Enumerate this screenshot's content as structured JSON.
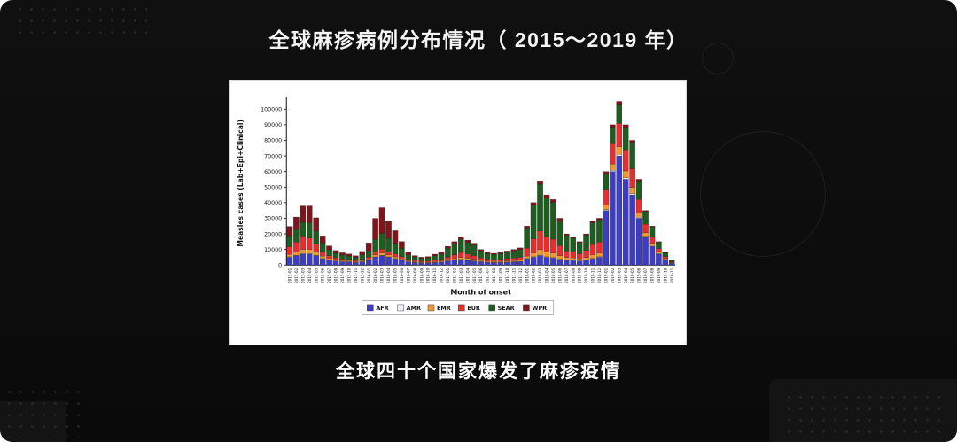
{
  "slide": {
    "title": "全球麻疹病例分布情况（ 2015～2019 年）",
    "caption": "全球四十个国家爆发了麻疹疫情"
  },
  "chart_data": {
    "type": "bar",
    "stacked": true,
    "title": "",
    "xlabel": "Month of onset",
    "ylabel": "Measles cases (Lab+Epi+Clinical)",
    "ylim": [
      0,
      105000
    ],
    "ytick_step": 10000,
    "grid": false,
    "legend_position": "bottom",
    "categories": [
      "2015-01",
      "2015-02",
      "2015-03",
      "2015-04",
      "2015-05",
      "2015-06",
      "2015-07",
      "2015-08",
      "2015-09",
      "2015-10",
      "2015-11",
      "2015-12",
      "2016-01",
      "2016-02",
      "2016-03",
      "2016-04",
      "2016-05",
      "2016-06",
      "2016-07",
      "2016-08",
      "2016-09",
      "2016-10",
      "2016-11",
      "2016-12",
      "2017-01",
      "2017-02",
      "2017-03",
      "2017-04",
      "2017-05",
      "2017-06",
      "2017-07",
      "2017-08",
      "2017-09",
      "2017-10",
      "2017-11",
      "2017-12",
      "2018-01",
      "2018-02",
      "2018-03",
      "2018-04",
      "2018-05",
      "2018-06",
      "2018-07",
      "2018-08",
      "2018-09",
      "2018-10",
      "2018-11",
      "2018-12",
      "2019-01",
      "2019-02",
      "2019-03",
      "2019-04",
      "2019-05",
      "2019-06",
      "2019-07",
      "2019-08",
      "2019-09",
      "2019-10",
      "2019-11"
    ],
    "series": [
      {
        "name": "AFR",
        "color": "#3d3dc4",
        "values": [
          5000,
          6000,
          7000,
          7000,
          6000,
          4000,
          3000,
          2500,
          2000,
          2000,
          1500,
          2000,
          3000,
          5000,
          6000,
          5000,
          4000,
          3000,
          2000,
          1500,
          1200,
          1200,
          1500,
          1800,
          2500,
          3000,
          3500,
          3000,
          2500,
          2000,
          1800,
          1500,
          1500,
          1800,
          2000,
          2200,
          4000,
          5000,
          6000,
          5000,
          4500,
          3500,
          3000,
          2800,
          2500,
          3000,
          4000,
          5000,
          35000,
          60000,
          70000,
          55000,
          45000,
          30000,
          18000,
          12000,
          7000,
          3500,
          1200
        ]
      },
      {
        "name": "AMR",
        "color": "#eef0ff",
        "values": [
          300,
          300,
          400,
          400,
          300,
          250,
          200,
          200,
          150,
          150,
          150,
          150,
          200,
          250,
          300,
          250,
          250,
          200,
          150,
          150,
          120,
          120,
          150,
          150,
          200,
          200,
          250,
          250,
          200,
          150,
          150,
          150,
          150,
          150,
          150,
          150,
          250,
          300,
          350,
          300,
          300,
          250,
          200,
          200,
          200,
          250,
          300,
          300,
          600,
          800,
          1000,
          900,
          800,
          600,
          500,
          400,
          300,
          200,
          100
        ]
      },
      {
        "name": "EMR",
        "color": "#f2992e",
        "values": [
          1500,
          2000,
          2500,
          2500,
          2000,
          1500,
          1000,
          800,
          700,
          600,
          500,
          600,
          800,
          1200,
          1500,
          1200,
          1000,
          800,
          600,
          500,
          400,
          450,
          500,
          550,
          700,
          900,
          1100,
          1000,
          900,
          700,
          600,
          550,
          600,
          650,
          700,
          750,
          1500,
          2500,
          3500,
          3000,
          2800,
          2200,
          1600,
          1500,
          1300,
          1600,
          2200,
          2400,
          3000,
          4000,
          5000,
          4500,
          4000,
          3000,
          2200,
          1600,
          1000,
          600,
          250
        ]
      },
      {
        "name": "EUR",
        "color": "#e62e2e",
        "values": [
          5000,
          6500,
          8000,
          7500,
          5500,
          3000,
          1800,
          1200,
          1000,
          900,
          800,
          1000,
          1200,
          2000,
          2500,
          2000,
          1800,
          1400,
          1000,
          800,
          700,
          800,
          1000,
          1200,
          1800,
          2500,
          3200,
          2800,
          2400,
          1700,
          1300,
          1200,
          1300,
          1500,
          1700,
          1900,
          5000,
          9000,
          12000,
          10000,
          9000,
          6500,
          4200,
          3800,
          3200,
          4500,
          6500,
          7000,
          10000,
          13000,
          15000,
          13500,
          12000,
          8500,
          5500,
          3800,
          2300,
          1200,
          450
        ]
      },
      {
        "name": "SEAR",
        "color": "#1f5c22",
        "values": [
          7000,
          8000,
          9500,
          9500,
          8000,
          5500,
          3800,
          2800,
          2500,
          2200,
          2000,
          2800,
          4000,
          8000,
          10000,
          8500,
          7000,
          5200,
          2800,
          2200,
          1900,
          2100,
          2900,
          3300,
          5600,
          7000,
          8500,
          7500,
          6800,
          4500,
          3400,
          3350,
          3650,
          4000,
          4450,
          4900,
          13000,
          21500,
          30000,
          24800,
          23600,
          16200,
          10200,
          9000,
          7200,
          9900,
          14000,
          14200,
          10000,
          10700,
          12300,
          14500,
          16800,
          11900,
          8100,
          6700,
          4100,
          2300,
          900
        ]
      },
      {
        "name": "WPR",
        "color": "#7d151b",
        "values": [
          6000,
          8000,
          10500,
          11000,
          8500,
          4500,
          2500,
          1800,
          1500,
          1200,
          1000,
          2200,
          5000,
          13500,
          16500,
          11000,
          8000,
          4500,
          1500,
          900,
          700,
          800,
          900,
          1000,
          1200,
          1400,
          1450,
          1450,
          1200,
          950,
          750,
          750,
          800,
          900,
          1000,
          1100,
          1250,
          1700,
          2150,
          1900,
          1800,
          1350,
          800,
          700,
          600,
          750,
          1000,
          1100,
          1400,
          1500,
          1700,
          1600,
          1400,
          1000,
          700,
          500,
          300,
          200,
          100
        ]
      }
    ]
  }
}
